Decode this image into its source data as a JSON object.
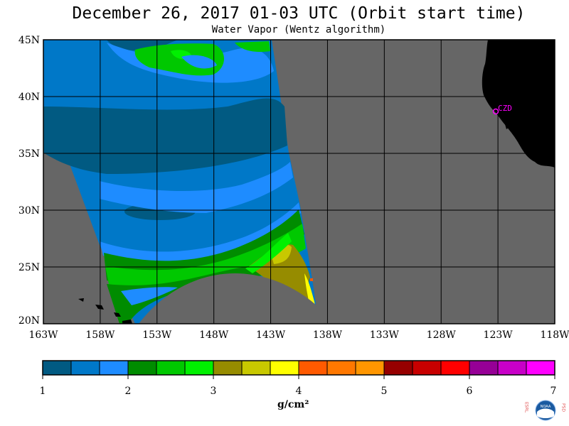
{
  "header": {
    "title": "December 26, 2017  01-03 UTC  (Orbit start time)",
    "subtitle": "Water Vapor (Wentz algorithm)"
  },
  "map": {
    "lat_labels": [
      "45N",
      "40N",
      "35N",
      "30N",
      "25N",
      "20N"
    ],
    "lon_labels": [
      "163W",
      "158W",
      "153W",
      "148W",
      "143W",
      "138W",
      "133W",
      "128W",
      "123W",
      "118W"
    ],
    "station_label": "CZD",
    "colors": {
      "no_data": "#666666",
      "land": "#000000",
      "station": "#ff00ff"
    }
  },
  "colorbar": {
    "tick_labels": [
      "1",
      "2",
      "3",
      "4",
      "5",
      "6",
      "7"
    ],
    "units": "g/cm²",
    "colors": [
      "#015a82",
      "#0078c8",
      "#1e8cff",
      "#008c00",
      "#00c800",
      "#00f000",
      "#968c00",
      "#c8c800",
      "#ffff00",
      "#ff5a00",
      "#ff7800",
      "#ff9600",
      "#960000",
      "#c80000",
      "#ff0000",
      "#960096",
      "#c800c8",
      "#ff00ff"
    ]
  },
  "logo": {
    "left_letters": "ESRL",
    "right_letters": "PSD",
    "center_text": "NOAA"
  }
}
